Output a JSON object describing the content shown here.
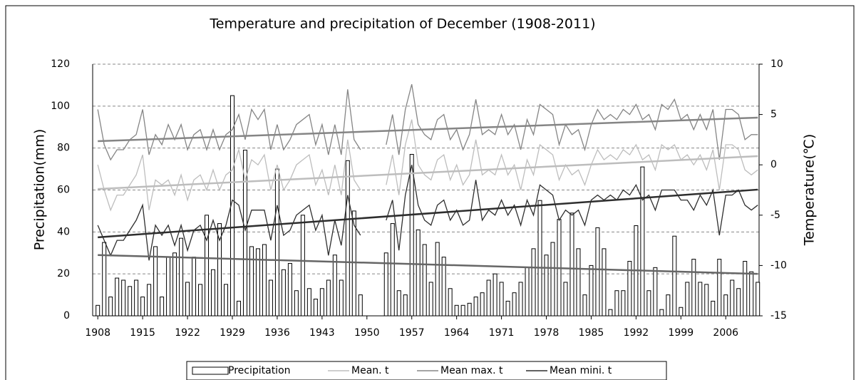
{
  "chart_data": {
    "type": "bar",
    "title": "Temperature and precipitation of December (1908-2011)",
    "ylabel": "Precipitation(mm)",
    "y2label": "Temperature(℃)",
    "x": [
      1908,
      1909,
      1910,
      1911,
      1912,
      1913,
      1914,
      1915,
      1916,
      1917,
      1918,
      1919,
      1920,
      1921,
      1922,
      1923,
      1924,
      1925,
      1926,
      1927,
      1928,
      1929,
      1930,
      1931,
      1932,
      1933,
      1934,
      1935,
      1936,
      1937,
      1938,
      1939,
      1940,
      1941,
      1942,
      1943,
      1944,
      1945,
      1946,
      1947,
      1948,
      1949,
      1950,
      1951,
      1952,
      1953,
      1954,
      1955,
      1956,
      1957,
      1958,
      1959,
      1960,
      1961,
      1962,
      1963,
      1964,
      1965,
      1966,
      1967,
      1968,
      1969,
      1970,
      1971,
      1972,
      1973,
      1974,
      1975,
      1976,
      1977,
      1978,
      1979,
      1980,
      1981,
      1982,
      1983,
      1984,
      1985,
      1986,
      1987,
      1988,
      1989,
      1990,
      1991,
      1992,
      1993,
      1994,
      1995,
      1996,
      1997,
      1998,
      1999,
      2000,
      2001,
      2002,
      2003,
      2004,
      2005,
      2006,
      2007,
      2008,
      2009,
      2010,
      2011
    ],
    "xlim": [
      1907.2,
      2011.2
    ],
    "xticks": [
      1908,
      1915,
      1922,
      1929,
      1936,
      1943,
      1950,
      1957,
      1964,
      1971,
      1978,
      1985,
      1992,
      1999,
      2006
    ],
    "ylim": [
      0,
      120
    ],
    "yticks": [
      0,
      20,
      40,
      60,
      80,
      100,
      120
    ],
    "y2lim": [
      -15,
      10
    ],
    "y2ticks": [
      -15,
      -10,
      -5,
      0,
      5,
      10
    ],
    "grid": true,
    "series": [
      {
        "name": "Precipitation",
        "type": "bar",
        "color": "#ffffff",
        "values": [
          5,
          35,
          9,
          18,
          17,
          14,
          17,
          9,
          15,
          33,
          9,
          28,
          30,
          37,
          16,
          28,
          15,
          48,
          22,
          44,
          15,
          105,
          7,
          79,
          33,
          32,
          34,
          17,
          70,
          22,
          25,
          12,
          48,
          13,
          8,
          13,
          17,
          29,
          17,
          74,
          50,
          10,
          null,
          null,
          null,
          30,
          44,
          12,
          10,
          77,
          41,
          34,
          16,
          35,
          28,
          13,
          5,
          5,
          6,
          9,
          11,
          17,
          20,
          16,
          7,
          11,
          16,
          23,
          32,
          55,
          29,
          35,
          46,
          16,
          49,
          32,
          10,
          24,
          42,
          32,
          3,
          12,
          12,
          26,
          43,
          71,
          12,
          23,
          3,
          10,
          38,
          4,
          16,
          27,
          16,
          15,
          7,
          27,
          10,
          17,
          13,
          26,
          21,
          16
        ],
        "trend": [
          29,
          20
        ]
      },
      {
        "name": "Mean. t",
        "type": "line",
        "axis": "y2",
        "color": "#bdbdbd",
        "values": [
          0.0,
          -2.5,
          -4.5,
          -3.0,
          -3.0,
          -2.0,
          -1.0,
          1.0,
          -4.5,
          -1.5,
          -2.0,
          -1.5,
          -3.0,
          -1.0,
          -3.5,
          -1.5,
          -1.0,
          -2.5,
          -0.5,
          -2.5,
          -1.0,
          -0.5,
          1.5,
          -1.5,
          0.5,
          0.0,
          1.0,
          -2.5,
          0.0,
          -2.5,
          -1.5,
          0.0,
          0.5,
          1.0,
          -2.0,
          -0.5,
          -3.0,
          0.0,
          -3.0,
          2.5,
          -1.5,
          -2.5,
          null,
          null,
          null,
          -2.0,
          1.0,
          -3.0,
          2.0,
          4.5,
          0.0,
          -1.0,
          -1.5,
          0.5,
          1.0,
          -1.5,
          0.0,
          -2.0,
          -1.0,
          2.5,
          -1.0,
          -0.5,
          -1.0,
          1.0,
          -1.0,
          0.0,
          -2.5,
          0.5,
          -1.0,
          2.0,
          1.5,
          1.0,
          -1.5,
          0.0,
          -1.0,
          -0.5,
          -2.0,
          0.0,
          1.5,
          0.5,
          1.0,
          0.5,
          1.5,
          1.0,
          2.0,
          0.5,
          1.0,
          -0.5,
          2.0,
          1.5,
          2.0,
          0.5,
          1.0,
          0.0,
          1.0,
          -0.5,
          1.5,
          -2.5,
          2.0,
          2.0,
          1.5,
          -0.5,
          -1.0,
          -0.5
        ],
        "trend": [
          -2.4,
          0.86
        ]
      },
      {
        "name": "Mean max. t",
        "type": "line",
        "axis": "y2",
        "color": "#858585",
        "values": [
          5.5,
          2.0,
          0.5,
          1.5,
          1.5,
          2.5,
          3.0,
          5.5,
          1.0,
          3.0,
          2.0,
          4.0,
          2.5,
          4.0,
          1.5,
          3.0,
          3.5,
          1.5,
          3.5,
          1.5,
          3.0,
          3.5,
          5.0,
          2.5,
          5.5,
          4.5,
          5.5,
          1.5,
          4.0,
          1.5,
          2.5,
          4.0,
          4.5,
          5.0,
          2.0,
          4.0,
          1.0,
          4.0,
          1.0,
          7.5,
          2.5,
          1.5,
          null,
          null,
          null,
          2.0,
          5.0,
          1.0,
          5.5,
          8.0,
          4.0,
          3.0,
          2.5,
          4.5,
          5.0,
          2.5,
          3.5,
          1.5,
          3.0,
          6.5,
          3.0,
          3.5,
          3.0,
          5.0,
          3.0,
          4.0,
          1.5,
          4.5,
          3.0,
          6.0,
          5.5,
          5.0,
          2.0,
          4.0,
          3.0,
          3.5,
          1.5,
          4.0,
          5.5,
          4.5,
          5.0,
          4.5,
          5.5,
          5.0,
          6.0,
          4.5,
          5.0,
          3.5,
          6.0,
          5.5,
          6.5,
          4.5,
          5.0,
          3.5,
          5.0,
          3.5,
          5.5,
          0.5,
          5.5,
          5.5,
          5.0,
          2.5,
          3.0,
          3.0
        ],
        "trend": [
          2.35,
          4.69
        ]
      },
      {
        "name": "Mean mini. t",
        "type": "line",
        "axis": "y2",
        "color": "#2e2e2e",
        "values": [
          -6.0,
          -7.5,
          -9.0,
          -7.5,
          -7.5,
          -6.5,
          -5.5,
          -4.0,
          -9.5,
          -6.0,
          -7.0,
          -6.0,
          -8.0,
          -6.0,
          -8.5,
          -6.5,
          -6.0,
          -7.5,
          -5.5,
          -7.5,
          -6.0,
          -3.5,
          -4.0,
          -6.5,
          -4.5,
          -4.5,
          -4.5,
          -7.5,
          -4.0,
          -7.0,
          -6.5,
          -5.0,
          -4.5,
          -4.0,
          -6.5,
          -5.0,
          -9.0,
          -5.5,
          -8.0,
          -3.0,
          -6.0,
          -7.0,
          null,
          null,
          null,
          -5.5,
          -3.5,
          -8.5,
          -3.0,
          0.0,
          -4.0,
          -5.5,
          -6.0,
          -4.0,
          -3.5,
          -5.5,
          -4.5,
          -6.0,
          -5.5,
          -1.5,
          -5.5,
          -4.5,
          -5.0,
          -3.5,
          -5.0,
          -4.0,
          -6.0,
          -3.5,
          -5.0,
          -2.0,
          -2.5,
          -3.0,
          -5.5,
          -4.5,
          -5.0,
          -4.5,
          -6.0,
          -3.5,
          -3.0,
          -3.5,
          -3.0,
          -3.5,
          -2.5,
          -3.0,
          -2.0,
          -3.5,
          -3.0,
          -4.5,
          -2.5,
          -2.5,
          -2.5,
          -3.5,
          -3.5,
          -4.5,
          -3.0,
          -4.0,
          -2.5,
          -7.0,
          -3.0,
          -3.0,
          -2.5,
          -4.0,
          -4.5,
          -4.0
        ],
        "trend": [
          -7.2,
          -2.46
        ]
      }
    ]
  }
}
